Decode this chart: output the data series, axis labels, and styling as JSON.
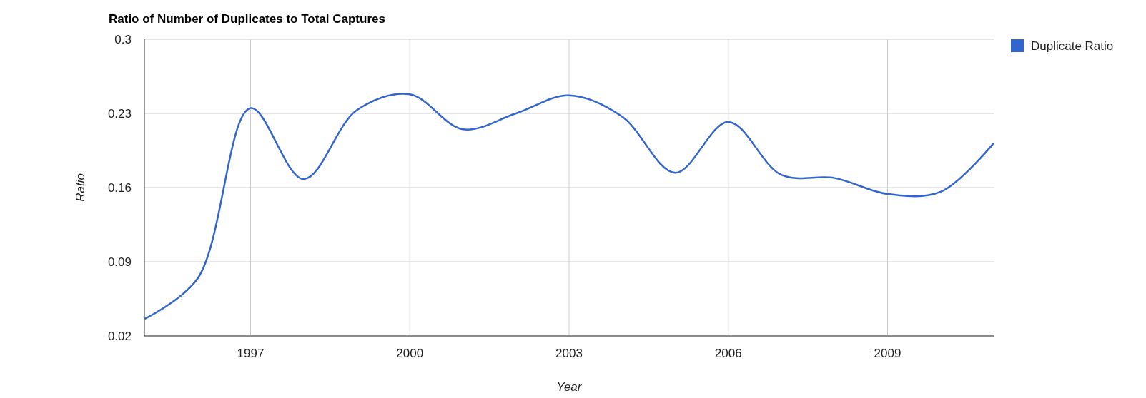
{
  "chart_data": {
    "type": "line",
    "title": "Ratio of Number of Duplicates to Total Captures",
    "xlabel": "Year",
    "ylabel": "Ratio",
    "x": [
      1995,
      1996,
      1997,
      1998,
      1999,
      2000,
      2001,
      2002,
      2003,
      2004,
      2005,
      2006,
      2007,
      2008,
      2009,
      2010,
      2011
    ],
    "series": [
      {
        "name": "Duplicate Ratio",
        "color": "#3366cc",
        "values": [
          0.036,
          0.074,
          0.235,
          0.168,
          0.233,
          0.248,
          0.215,
          0.23,
          0.247,
          0.227,
          0.174,
          0.222,
          0.172,
          0.169,
          0.154,
          0.156,
          0.202
        ]
      }
    ],
    "xlim": [
      1995,
      2011
    ],
    "xticks": [
      1997,
      2000,
      2003,
      2006,
      2009
    ],
    "ylim": [
      0.02,
      0.3
    ],
    "yticks": [
      0.02,
      0.09,
      0.16,
      0.23,
      0.3
    ],
    "grid": true,
    "legend": "top right",
    "marker": "none",
    "line_style": "solid"
  }
}
